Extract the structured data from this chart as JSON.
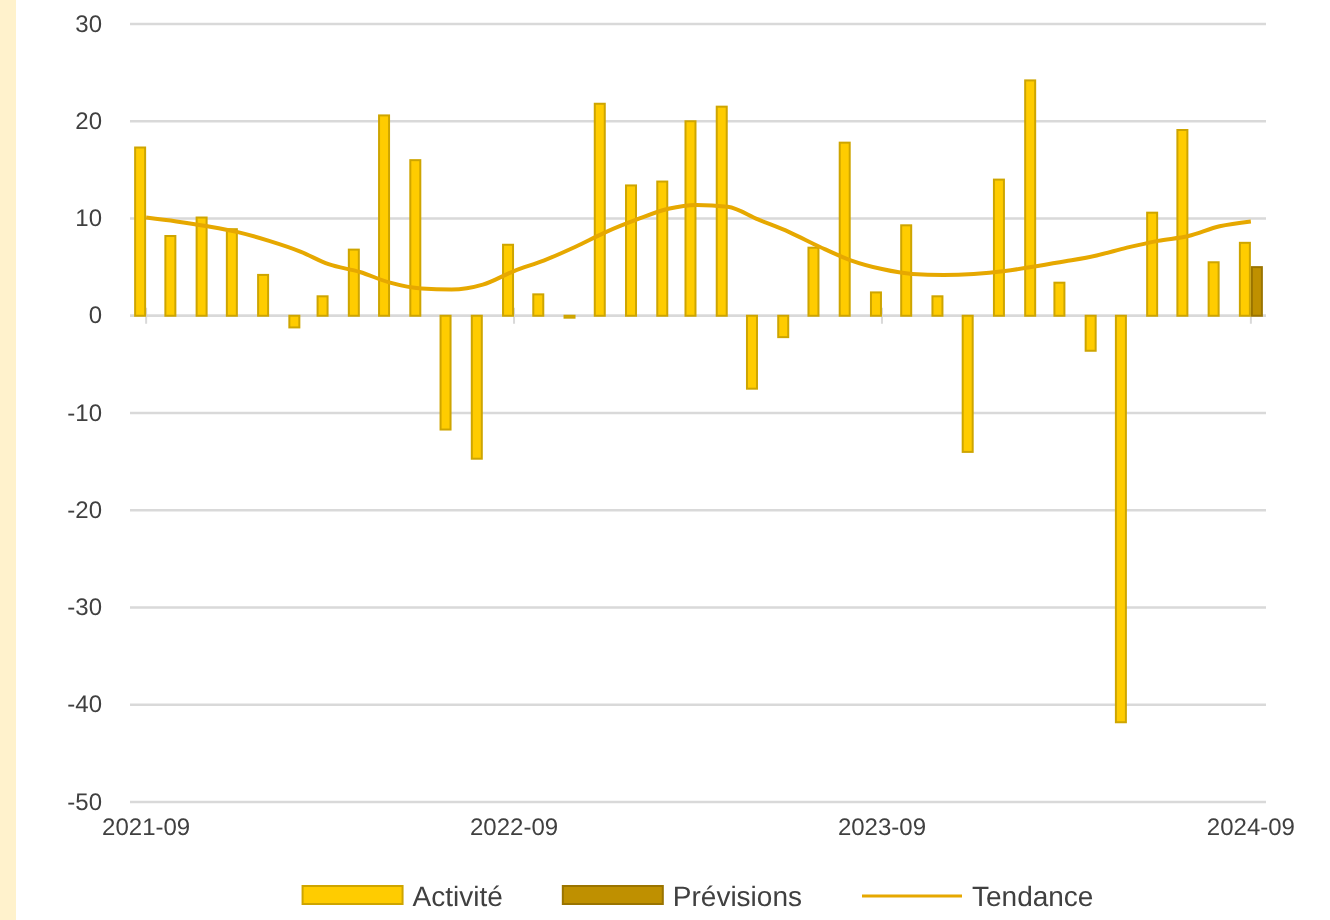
{
  "chart_data": {
    "type": "bar",
    "x": [
      "2021-09",
      "2021-10",
      "2021-11",
      "2021-12",
      "2022-01",
      "2022-02",
      "2022-03",
      "2022-04",
      "2022-05",
      "2022-06",
      "2022-07",
      "2022-08",
      "2022-09",
      "2022-10",
      "2022-11",
      "2022-12",
      "2023-01",
      "2023-02",
      "2023-03",
      "2023-04",
      "2023-05",
      "2023-06",
      "2023-07",
      "2023-08",
      "2023-09",
      "2023-10",
      "2023-11",
      "2023-12",
      "2024-01",
      "2024-02",
      "2024-03",
      "2024-04",
      "2024-05",
      "2024-06",
      "2024-07",
      "2024-08",
      "2024-09"
    ],
    "series": [
      {
        "name": "Activité",
        "color": "#ffcc00",
        "values": [
          17.3,
          8.2,
          10.1,
          8.9,
          4.2,
          -1.2,
          2.0,
          6.8,
          20.6,
          16.0,
          -11.7,
          -14.7,
          7.3,
          2.2,
          -0.2,
          21.8,
          13.4,
          13.8,
          20.0,
          21.5,
          -7.5,
          -2.2,
          7.0,
          17.8,
          2.4,
          9.3,
          2.0,
          -14.0,
          14.0,
          24.2,
          3.4,
          -3.6,
          -41.8,
          10.6,
          19.1,
          5.5,
          7.5
        ]
      },
      {
        "name": "Prévisions",
        "color": "#bf9000",
        "values": [
          null,
          null,
          null,
          null,
          null,
          null,
          null,
          null,
          null,
          null,
          null,
          null,
          null,
          null,
          null,
          null,
          null,
          null,
          null,
          null,
          null,
          null,
          null,
          null,
          null,
          null,
          null,
          null,
          null,
          null,
          null,
          null,
          null,
          null,
          null,
          null,
          5.0
        ]
      },
      {
        "name": "Tendance",
        "type": "line",
        "color": "#e6a800",
        "values": [
          10.1,
          9.7,
          9.2,
          8.6,
          7.7,
          6.6,
          5.3,
          4.5,
          3.4,
          2.8,
          2.7,
          3.2,
          4.6,
          5.7,
          7.1,
          8.6,
          9.9,
          11.0,
          11.4,
          11.2,
          9.9,
          8.6,
          7.1,
          5.7,
          4.8,
          4.3,
          4.2,
          4.3,
          4.6,
          5.1,
          5.6,
          6.2,
          7.0,
          7.7,
          8.2,
          9.2,
          9.7
        ]
      }
    ],
    "xlim": [
      "2021-08-16",
      "2024-09-16"
    ],
    "xticks": [
      {
        "value": "2021-09",
        "label": "2021-09"
      },
      {
        "value": "2022-09",
        "label": "2022-09"
      },
      {
        "value": "2023-09",
        "label": "2023-09"
      },
      {
        "value": "2024-09",
        "label": "2024-09"
      }
    ],
    "ylim": [
      -50,
      30
    ],
    "yticks": [
      -50,
      -40,
      -30,
      -20,
      -10,
      0,
      10,
      20,
      30
    ],
    "grid": "y",
    "legend": "bottom",
    "marker": "none",
    "line_style": "solid"
  }
}
